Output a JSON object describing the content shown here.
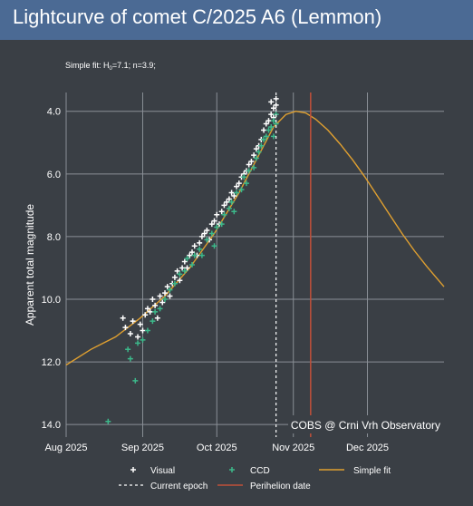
{
  "header": {
    "title": "Lightcurve of comet C/2025 A6 (Lemmon)"
  },
  "colors": {
    "title_bar": "#4b6a94",
    "background": "#3a3f45",
    "grid": "#8a8f96",
    "visual": "#ffffff",
    "ccd": "#3cb88a",
    "fit": "#e0a030",
    "current_epoch": "#ffffff",
    "perihelion": "#c0503a"
  },
  "chart_data": {
    "type": "scatter",
    "fit_note": {
      "prefix": "Simple fit: H",
      "subscript": "0",
      "suffix": "=7.1; n=3.9;"
    },
    "ylabel": "Apparent total magnitude",
    "y_inverted": true,
    "ylim": [
      14.4,
      3.4
    ],
    "y_ticks": [
      4.0,
      6.0,
      8.0,
      10.0,
      12.0,
      14.0
    ],
    "y_tick_labels": [
      "4.0",
      "6.0",
      "8.0",
      "10.0",
      "12.0",
      "14.0"
    ],
    "xlim": [
      "2025-08-01",
      "2026-01-01"
    ],
    "x_ticks": [
      "2025-08-01",
      "2025-09-01",
      "2025-10-01",
      "2025-11-01",
      "2025-12-01"
    ],
    "x_tick_labels": [
      "Aug 2025",
      "Sep 2025",
      "Oct 2025",
      "Nov 2025",
      "Dec 2025"
    ],
    "grid": true,
    "legend_position": "bottom",
    "watermark": "COBS @ Crni Vrh Observatory",
    "current_epoch": "2025-10-25",
    "perihelion_date": "2025-11-08",
    "legend": {
      "visual": "Visual",
      "ccd": "CCD",
      "fit": "Simple fit",
      "current_epoch": "Current epoch",
      "perihelion": "Perihelion date"
    },
    "series": [
      {
        "name": "Visual",
        "marker": "+",
        "points": [
          [
            "2025-08-24",
            10.6
          ],
          [
            "2025-08-25",
            10.9
          ],
          [
            "2025-08-27",
            11.1
          ],
          [
            "2025-08-28",
            10.7
          ],
          [
            "2025-08-30",
            11.2
          ],
          [
            "2025-08-31",
            10.8
          ],
          [
            "2025-09-01",
            11.0
          ],
          [
            "2025-09-02",
            10.5
          ],
          [
            "2025-09-03",
            10.3
          ],
          [
            "2025-09-04",
            10.4
          ],
          [
            "2025-09-05",
            10.0
          ],
          [
            "2025-09-06",
            10.2
          ],
          [
            "2025-09-07",
            10.6
          ],
          [
            "2025-09-08",
            9.9
          ],
          [
            "2025-09-09",
            10.1
          ],
          [
            "2025-09-10",
            9.8
          ],
          [
            "2025-09-11",
            9.6
          ],
          [
            "2025-09-12",
            9.9
          ],
          [
            "2025-09-13",
            9.5
          ],
          [
            "2025-09-14",
            9.3
          ],
          [
            "2025-09-15",
            9.1
          ],
          [
            "2025-09-16",
            9.4
          ],
          [
            "2025-09-17",
            9.0
          ],
          [
            "2025-09-18",
            8.8
          ],
          [
            "2025-09-19",
            9.0
          ],
          [
            "2025-09-20",
            8.6
          ],
          [
            "2025-09-21",
            8.5
          ],
          [
            "2025-09-22",
            8.3
          ],
          [
            "2025-09-23",
            8.6
          ],
          [
            "2025-09-24",
            8.2
          ],
          [
            "2025-09-25",
            8.0
          ],
          [
            "2025-09-26",
            7.9
          ],
          [
            "2025-09-27",
            7.8
          ],
          [
            "2025-09-28",
            8.1
          ],
          [
            "2025-09-29",
            7.6
          ],
          [
            "2025-09-30",
            7.5
          ],
          [
            "2025-10-01",
            7.3
          ],
          [
            "2025-10-02",
            7.6
          ],
          [
            "2025-10-03",
            7.2
          ],
          [
            "2025-10-04",
            7.0
          ],
          [
            "2025-10-05",
            6.9
          ],
          [
            "2025-10-06",
            6.8
          ],
          [
            "2025-10-07",
            6.6
          ],
          [
            "2025-10-08",
            6.7
          ],
          [
            "2025-10-09",
            6.4
          ],
          [
            "2025-10-10",
            6.3
          ],
          [
            "2025-10-11",
            6.1
          ],
          [
            "2025-10-12",
            6.0
          ],
          [
            "2025-10-13",
            5.9
          ],
          [
            "2025-10-14",
            5.7
          ],
          [
            "2025-10-15",
            5.6
          ],
          [
            "2025-10-16",
            5.4
          ],
          [
            "2025-10-17",
            5.2
          ],
          [
            "2025-10-18",
            5.1
          ],
          [
            "2025-10-19",
            4.9
          ],
          [
            "2025-10-20",
            4.6
          ],
          [
            "2025-10-21",
            4.4
          ],
          [
            "2025-10-22",
            4.3
          ],
          [
            "2025-10-23",
            4.1
          ],
          [
            "2025-10-23",
            3.7
          ],
          [
            "2025-10-24",
            3.9
          ],
          [
            "2025-10-24",
            4.2
          ],
          [
            "2025-10-25",
            3.8
          ],
          [
            "2025-10-25",
            3.6
          ]
        ]
      },
      {
        "name": "CCD",
        "marker": "+",
        "points": [
          [
            "2025-08-18",
            13.9
          ],
          [
            "2025-08-26",
            11.6
          ],
          [
            "2025-08-27",
            11.9
          ],
          [
            "2025-08-29",
            12.6
          ],
          [
            "2025-08-30",
            11.4
          ],
          [
            "2025-09-01",
            11.3
          ],
          [
            "2025-09-03",
            11.0
          ],
          [
            "2025-09-05",
            10.7
          ],
          [
            "2025-09-06",
            10.4
          ],
          [
            "2025-09-08",
            10.3
          ],
          [
            "2025-09-10",
            10.0
          ],
          [
            "2025-09-12",
            9.7
          ],
          [
            "2025-09-14",
            9.5
          ],
          [
            "2025-09-16",
            9.2
          ],
          [
            "2025-09-18",
            9.1
          ],
          [
            "2025-09-19",
            8.7
          ],
          [
            "2025-09-21",
            8.9
          ],
          [
            "2025-09-22",
            8.6
          ],
          [
            "2025-09-24",
            8.4
          ],
          [
            "2025-09-25",
            8.6
          ],
          [
            "2025-09-27",
            8.1
          ],
          [
            "2025-09-29",
            7.9
          ],
          [
            "2025-09-30",
            8.3
          ],
          [
            "2025-10-01",
            7.7
          ],
          [
            "2025-10-03",
            7.6
          ],
          [
            "2025-10-04",
            7.3
          ],
          [
            "2025-10-06",
            7.1
          ],
          [
            "2025-10-07",
            6.9
          ],
          [
            "2025-10-08",
            7.2
          ],
          [
            "2025-10-09",
            6.6
          ],
          [
            "2025-10-11",
            6.5
          ],
          [
            "2025-10-12",
            6.1
          ],
          [
            "2025-10-13",
            6.3
          ],
          [
            "2025-10-14",
            5.9
          ],
          [
            "2025-10-16",
            5.8
          ],
          [
            "2025-10-17",
            5.5
          ],
          [
            "2025-10-18",
            5.3
          ],
          [
            "2025-10-19",
            5.1
          ],
          [
            "2025-10-20",
            4.9
          ],
          [
            "2025-10-21",
            4.8
          ],
          [
            "2025-10-22",
            4.6
          ],
          [
            "2025-10-23",
            4.5
          ],
          [
            "2025-10-24",
            4.3
          ],
          [
            "2025-10-24",
            4.8
          ],
          [
            "2025-10-25",
            4.4
          ],
          [
            "2025-10-25",
            4.1
          ]
        ]
      },
      {
        "name": "Simple fit",
        "type": "line",
        "points": [
          [
            "2025-08-01",
            12.1
          ],
          [
            "2025-08-11",
            11.6
          ],
          [
            "2025-08-21",
            11.2
          ],
          [
            "2025-08-31",
            10.6
          ],
          [
            "2025-09-10",
            9.9
          ],
          [
            "2025-09-20",
            9.0
          ],
          [
            "2025-09-30",
            7.9
          ],
          [
            "2025-10-10",
            6.6
          ],
          [
            "2025-10-18",
            5.4
          ],
          [
            "2025-10-24",
            4.5
          ],
          [
            "2025-10-29",
            4.1
          ],
          [
            "2025-11-02",
            4.0
          ],
          [
            "2025-11-06",
            4.05
          ],
          [
            "2025-11-10",
            4.25
          ],
          [
            "2025-11-15",
            4.6
          ],
          [
            "2025-11-20",
            5.05
          ],
          [
            "2025-11-25",
            5.55
          ],
          [
            "2025-11-30",
            6.1
          ],
          [
            "2025-12-05",
            6.7
          ],
          [
            "2025-12-10",
            7.3
          ],
          [
            "2025-12-15",
            7.9
          ],
          [
            "2025-12-20",
            8.45
          ],
          [
            "2025-12-25",
            8.95
          ],
          [
            "2026-01-01",
            9.6
          ]
        ]
      }
    ]
  }
}
